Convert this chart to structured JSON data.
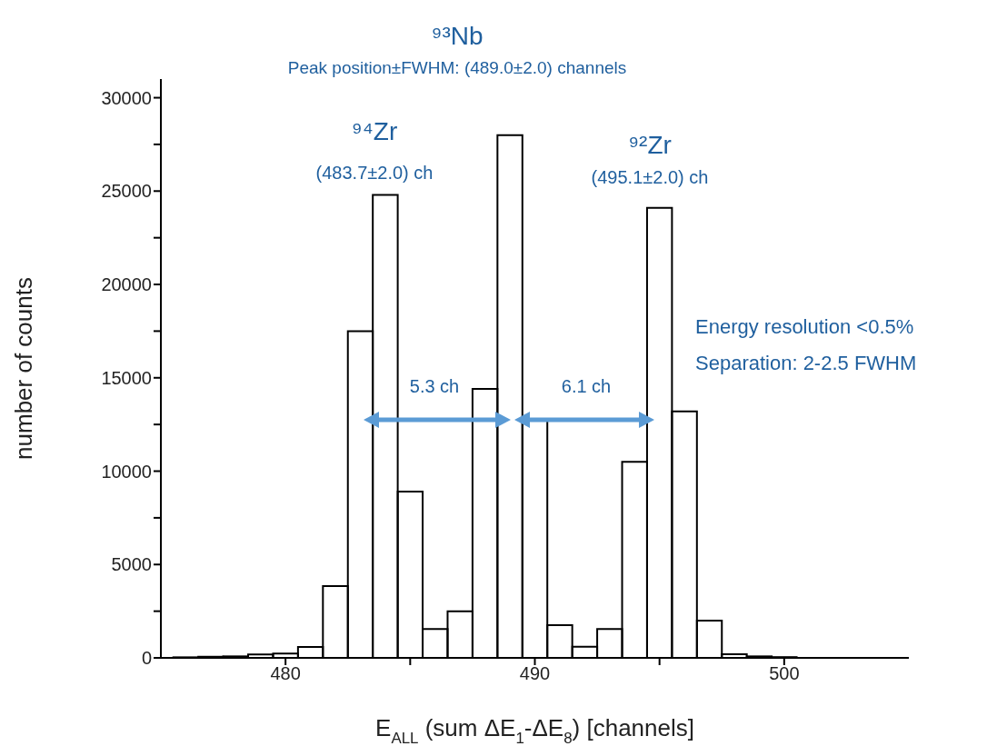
{
  "chart_data": {
    "type": "histogram",
    "bins": [
      475.5,
      476.5,
      477.5,
      478.5,
      479.5,
      480.5,
      481.5,
      482.5,
      483.5,
      484.5,
      485.5,
      486.5,
      487.5,
      488.5,
      489.5,
      490.5,
      491.5,
      492.5,
      493.5,
      494.5,
      495.5,
      496.5,
      497.5,
      498.5,
      499.5,
      500.5
    ],
    "values": [
      30,
      60,
      80,
      180,
      230,
      580,
      3850,
      17500,
      24800,
      8900,
      1550,
      2500,
      14400,
      28000,
      12700,
      1750,
      600,
      1550,
      10500,
      24100,
      13200,
      2000,
      200,
      80,
      40
    ],
    "color": "#000000",
    "xlabel": "E$_{ALL}$ (sum ΔE$_{1}$-ΔE$_{8}$) [channels]",
    "ylabel": "number of counts",
    "xlim": [
      475,
      505
    ],
    "xticks": [
      480,
      {
        "value": 485,
        "label": null
      },
      490,
      {
        "value": 495,
        "label": null
      },
      500
    ],
    "ylim": [
      0,
      31000
    ],
    "yticks": [
      0,
      {
        "value": 2500,
        "label": null
      },
      5000,
      {
        "value": 7500,
        "label": null
      },
      10000,
      {
        "value": 12500,
        "label": null
      },
      15000,
      {
        "value": 17500,
        "label": null
      },
      20000,
      {
        "value": 22500,
        "label": null
      },
      25000,
      {
        "value": 27500,
        "label": null
      },
      30000
    ],
    "annotations": [
      "⁹³Nb",
      "Peak position±FWHM: (489.0±2.0) channels",
      "⁹⁴Zr",
      "(483.7±2.0) ch",
      "⁹²Zr",
      "(495.1±2.0) ch",
      "5.3 ch",
      "6.1 ch",
      "Energy resolution <0.5%",
      "Separation: 2-2.5 FWHM"
    ]
  }
}
